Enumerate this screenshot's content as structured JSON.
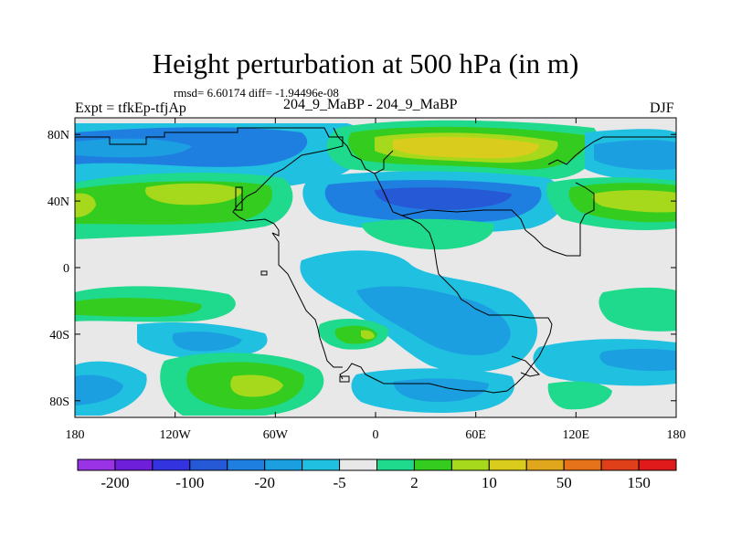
{
  "title": "Height perturbation at 500 hPa (in m)",
  "stats_line": "rmsd= 6.60174 diff= -1.94496e-08",
  "left_label": "Expt = tfkEp-tfjAp",
  "center_label": "204_9_MaBP - 204_9_MaBP",
  "right_label": "DJF",
  "lat_ticks": [
    {
      "value": 80,
      "label": "80N"
    },
    {
      "value": 40,
      "label": "40N"
    },
    {
      "value": 0,
      "label": "0"
    },
    {
      "value": -40,
      "label": "40S"
    },
    {
      "value": -80,
      "label": "80S"
    }
  ],
  "lon_ticks": [
    {
      "value": -180,
      "label": "180"
    },
    {
      "value": -120,
      "label": "120W"
    },
    {
      "value": -60,
      "label": "60W"
    },
    {
      "value": 0,
      "label": "0"
    },
    {
      "value": 60,
      "label": "60E"
    },
    {
      "value": 120,
      "label": "120E"
    },
    {
      "value": 180,
      "label": "180"
    }
  ],
  "colorbar": {
    "colors": [
      "#9a33e6",
      "#6d1fd9",
      "#3333e0",
      "#2659d6",
      "#1f7fe0",
      "#1c9fe0",
      "#20c0e0",
      "#e8e8e8",
      "#1fd98c",
      "#33cc1f",
      "#a6d91c",
      "#d9cc1c",
      "#e0a61c",
      "#e67319",
      "#e04019",
      "#e01a1a"
    ],
    "labels": [
      {
        "after_box": 1,
        "text": "-200"
      },
      {
        "after_box": 3,
        "text": "-100"
      },
      {
        "after_box": 5,
        "text": "-20"
      },
      {
        "after_box": 7,
        "text": "-5"
      },
      {
        "after_box": 9,
        "text": "2"
      },
      {
        "after_box": 11,
        "text": "10"
      },
      {
        "after_box": 13,
        "text": "50"
      },
      {
        "after_box": 15,
        "text": "150"
      }
    ]
  },
  "palette": {
    "neutral": "#e8e8e8",
    "light_cyan": "#20c0e0",
    "cyan_blue": "#1c9fe0",
    "blue": "#1f7fe0",
    "deep_blue": "#2659d6",
    "green_teal": "#1fd98c",
    "green": "#33cc1f",
    "yellow_green": "#a6d91c",
    "yellow": "#d9cc1c"
  }
}
